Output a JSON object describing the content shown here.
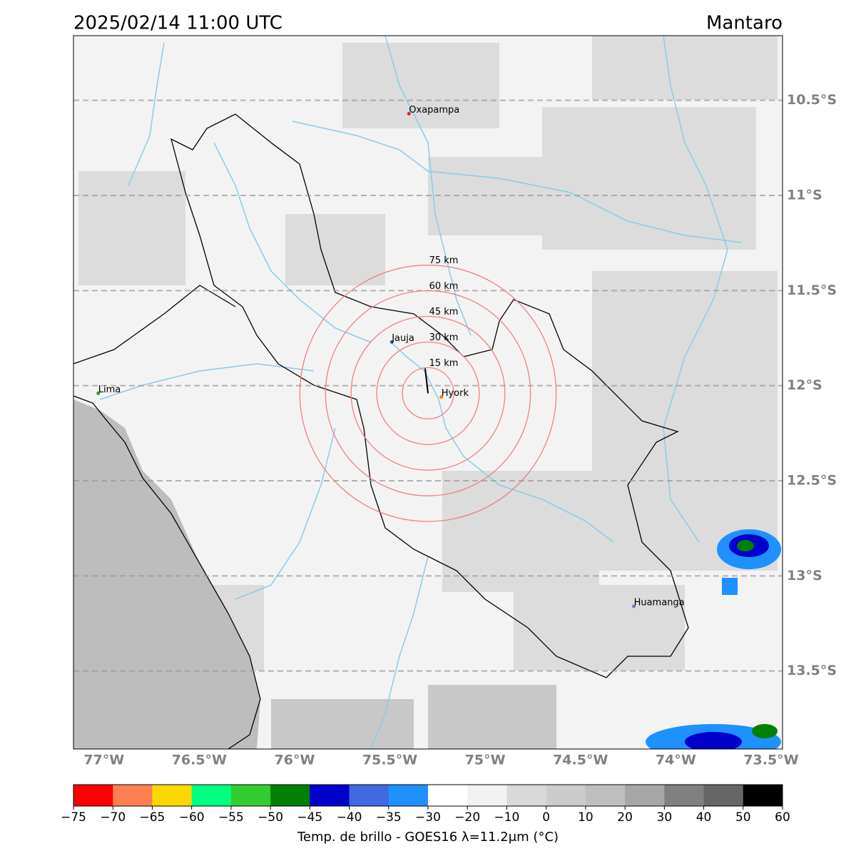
{
  "header": {
    "title": "2025/02/14 11:00 UTC",
    "region": "Mantaro"
  },
  "map": {
    "lon_range": [
      -77.16,
      -73.44
    ],
    "lat_range": [
      -13.91,
      -10.16
    ],
    "lat_lines": [
      {
        "value": -10.5,
        "label": "10.5°S"
      },
      {
        "value": -11,
        "label": "11°S"
      },
      {
        "value": -11.5,
        "label": "11.5°S"
      },
      {
        "value": -12,
        "label": "12°S"
      },
      {
        "value": -12.5,
        "label": "12.5°S"
      },
      {
        "value": -13,
        "label": "13°S"
      },
      {
        "value": -13.5,
        "label": "13.5°S"
      }
    ],
    "lon_ticks": [
      {
        "value": -77,
        "label": "77°W"
      },
      {
        "value": -76.5,
        "label": "76.5°W"
      },
      {
        "value": -76,
        "label": "76°W"
      },
      {
        "value": -75.5,
        "label": "75.5°W"
      },
      {
        "value": -75,
        "label": "75°W"
      },
      {
        "value": -74.5,
        "label": "74.5°W"
      },
      {
        "value": -74,
        "label": "74°W"
      },
      {
        "value": -73.5,
        "label": "73.5°W"
      }
    ],
    "cities": [
      {
        "name": "Oxapampa",
        "lon": -75.4,
        "lat": -10.57,
        "color": "#d62728"
      },
      {
        "name": "Jauja",
        "lon": -75.49,
        "lat": -11.77,
        "color": "#1f77b4"
      },
      {
        "name": "Lima",
        "lon": -77.03,
        "lat": -12.04,
        "color": "#2ca02c"
      },
      {
        "name": "Hyork",
        "lon": -75.23,
        "lat": -12.06,
        "color": "#ff7f0e"
      },
      {
        "name": "Huamanga",
        "lon": -74.22,
        "lat": -13.16,
        "color": "#9467bd"
      }
    ],
    "rings": {
      "center_lon": -75.3,
      "center_lat": -12.04,
      "color": "#f08080",
      "items": [
        {
          "radius_km": 15,
          "label": "15 km"
        },
        {
          "radius_km": 30,
          "label": "30 km"
        },
        {
          "radius_km": 45,
          "label": "45 km"
        },
        {
          "radius_km": 60,
          "label": "60 km"
        },
        {
          "radius_km": 75,
          "label": "75 km"
        }
      ]
    }
  },
  "colorbar": {
    "label": "Temp. de brillo - GOES16 λ=11.2μm (°C)",
    "ticks": [
      {
        "value": -75,
        "label": "−75"
      },
      {
        "value": -70,
        "label": "−70"
      },
      {
        "value": -65,
        "label": "−65"
      },
      {
        "value": -60,
        "label": "−60"
      },
      {
        "value": -55,
        "label": "−55"
      },
      {
        "value": -50,
        "label": "−50"
      },
      {
        "value": -45,
        "label": "−45"
      },
      {
        "value": -40,
        "label": "−40"
      },
      {
        "value": -35,
        "label": "−35"
      },
      {
        "value": -30,
        "label": "−30"
      },
      {
        "value": -20,
        "label": "−20"
      },
      {
        "value": -10,
        "label": "−10"
      },
      0,
      10,
      20,
      30,
      40,
      50,
      60
    ],
    "colors": [
      "#ff0000",
      "#ff7f50",
      "#ffd700",
      "#00ff80",
      "#32cd32",
      "#008000",
      "#0000cd",
      "#4169e1",
      "#1e90ff",
      "#ffffff",
      "#f2f2f2",
      "#d9d9d9",
      "#cccccc",
      "#bfbfbf",
      "#a6a6a6",
      "#808080",
      "#666666",
      "#000000"
    ]
  }
}
